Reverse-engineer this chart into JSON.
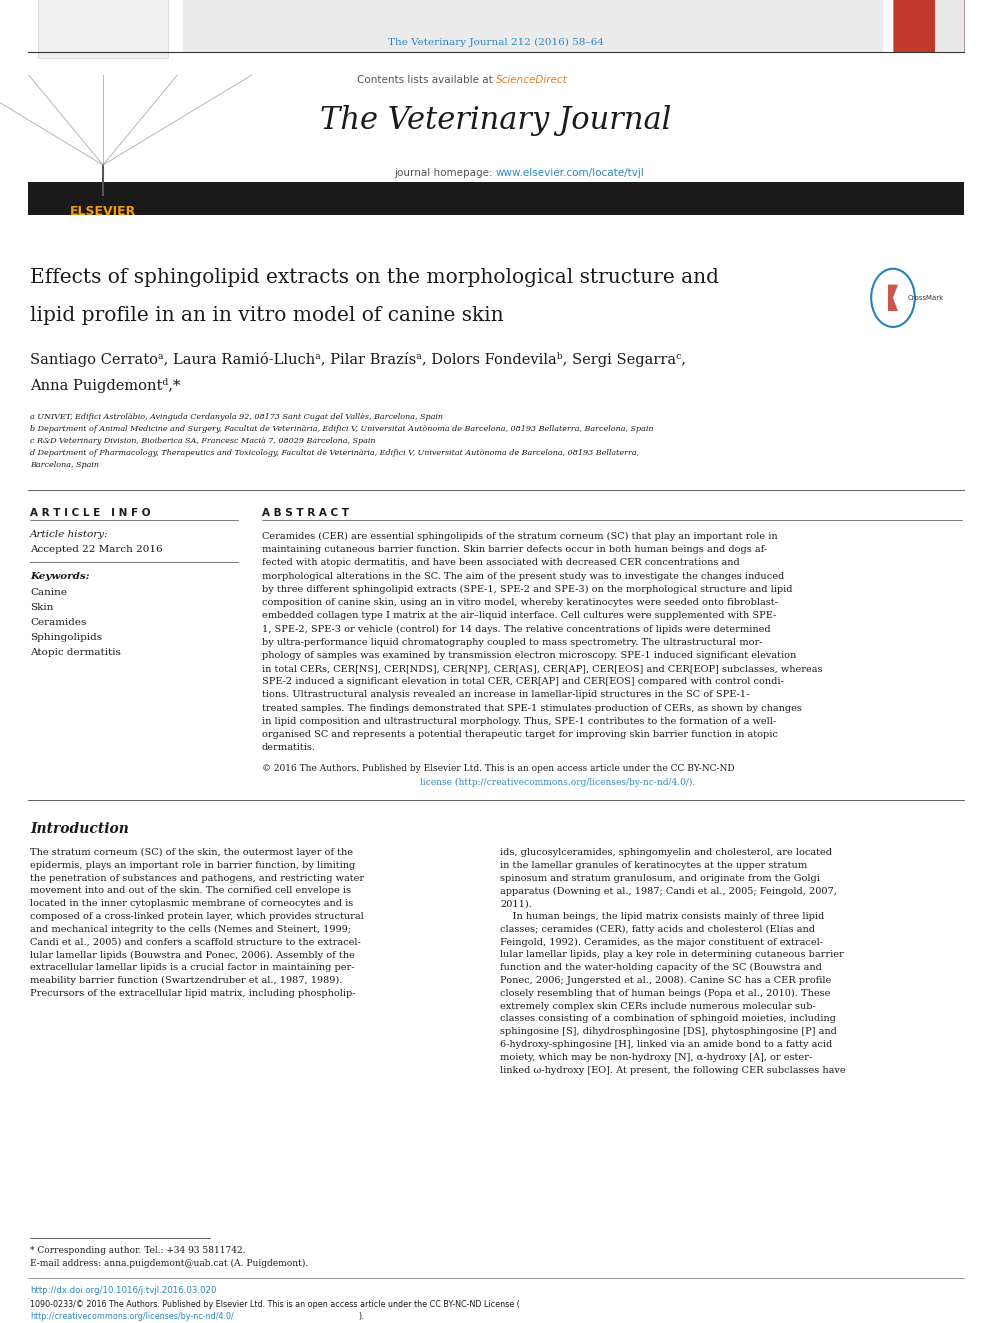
{
  "page_width": 9.92,
  "page_height": 13.23,
  "bg_color": "#ffffff",
  "journal_cite": "The Veterinary Journal 212 (2016) 58–64",
  "journal_cite_color": "#2e86c1",
  "sciencedirect_color": "#e67e22",
  "journal_title": "The Veterinary Journal",
  "journal_homepage_url": "www.elsevier.com/locate/tvjl",
  "journal_homepage_color": "#2e86c1",
  "article_info_header": "A R T I C L E   I N F O",
  "article_history_label": "Article history:",
  "accepted_text": "Accepted 22 March 2016",
  "keywords_label": "Keywords:",
  "keywords": [
    "Canine",
    "Skin",
    "Ceramides",
    "Sphingolipids",
    "Atopic dermatitis"
  ],
  "abstract_header": "A B S T R A C T",
  "affil_a": "a UNIVET, Edifici Astrolàbio, Avinguda Cerdanyola 92, 08173 Sant Cugat del Vallès, Barcelona, Spain",
  "affil_b": "b Department of Animal Medicine and Surgery, Facultat de Veterinària, Edifici V, Universitat Autònoma de Barcelona, 08193 Bellaterra, Barcelona, Spain",
  "affil_c": "c R&D Veterinary Division, Bioiberica SA, Francesc Macià 7, 08029 Barcelona, Spain",
  "affil_d": "d Department of Pharmacology, Therapeutics and Toxicology, Facultat de Veterinària, Edifici V, Universitat Autònoma de Barcelona, 08193 Bellaterra,",
  "affil_d2": "Barcelona, Spain",
  "footnote_tel": "* Corresponding author. Tel.: +34 93 5811742.",
  "footnote_email": "E-mail address: anna.puigdemont@uab.cat (A. Puigdemont).",
  "doi_text": "http://dx.doi.org/10.1016/j.tvjl.2016.03.020",
  "doi_color": "#2e86c1",
  "elsevier_orange": "#f39c12",
  "dark_bar_color": "#1a1a1a",
  "abstract_lines": [
    "Ceramides (CER) are essential sphingolipids of the stratum corneum (SC) that play an important role in",
    "maintaining cutaneous barrier function. Skin barrier defects occur in both human beings and dogs af-",
    "fected with atopic dermatitis, and have been associated with decreased CER concentrations and",
    "morphological alterations in the SC. The aim of the present study was to investigate the changes induced",
    "by three different sphingolipid extracts (SPE-1, SPE-2 and SPE-3) on the morphological structure and lipid",
    "composition of canine skin, using an in vitro model, whereby keratinocytes were seeded onto fibroblast-",
    "embedded collagen type I matrix at the air–liquid interface. Cell cultures were supplemented with SPE-",
    "1, SPE-2, SPE-3 or vehicle (control) for 14 days. The relative concentrations of lipids were determined",
    "by ultra-performance liquid chromatography coupled to mass spectrometry. The ultrastructural mor-",
    "phology of samples was examined by transmission electron microscopy. SPE-1 induced significant elevation",
    "in total CERs, CER[NS], CER[NDS], CER[NP], CER[AS], CER[AP], CER[EOS] and CER[EOP] subclasses, whereas",
    "SPE-2 induced a significant elevation in total CER, CER[AP] and CER[EOS] compared with control condi-",
    "tions. Ultrastructural analysis revealed an increase in lamellar-lipid structures in the SC of SPE-1-",
    "treated samples. The findings demonstrated that SPE-1 stimulates production of CERs, as shown by changes",
    "in lipid composition and ultrastructural morphology. Thus, SPE-1 contributes to the formation of a well-",
    "organised SC and represents a potential therapeutic target for improving skin barrier function in atopic",
    "dermatitis."
  ],
  "intro_left_lines": [
    "The stratum corneum (SC) of the skin, the outermost layer of the",
    "epidermis, plays an important role in barrier function, by limiting",
    "the penetration of substances and pathogens, and restricting water",
    "movement into and out of the skin. The cornified cell envelope is",
    "located in the inner cytoplasmic membrane of corneocytes and is",
    "composed of a cross-linked protein layer, which provides structural",
    "and mechanical integrity to the cells (Nemes and Steinert, 1999;",
    "Candi et al., 2005) and confers a scaffold structure to the extracel-",
    "lular lamellar lipids (Bouwstra and Ponec, 2006). Assembly of the",
    "extracellular lamellar lipids is a crucial factor in maintaining per-",
    "meability barrier function (Swartzendruber et al., 1987, 1989).",
    "Precursors of the extracellular lipid matrix, including phospholip-"
  ],
  "intro_right_lines": [
    "ids, glucosylceramides, sphingomyelin and cholesterol, are located",
    "in the lamellar granules of keratinocytes at the upper stratum",
    "spinosum and stratum granulosum, and originate from the Golgi",
    "apparatus (Downing et al., 1987; Candi et al., 2005; Feingold, 2007,",
    "2011).",
    "    In human beings, the lipid matrix consists mainly of three lipid",
    "classes; ceramides (CER), fatty acids and cholesterol (Elias and",
    "Feingold, 1992). Ceramides, as the major constituent of extracel-",
    "lular lamellar lipids, play a key role in determining cutaneous barrier",
    "function and the water-holding capacity of the SC (Bouwstra and",
    "Ponec, 2006; Jungersted et al., 2008). Canine SC has a CER profile",
    "closely resembling that of human beings (Popa et al., 2010). These",
    "extremely complex skin CERs include numerous molecular sub-",
    "classes consisting of a combination of sphingoid moieties, including",
    "sphingosine [S], dihydrosphingosine [DS], phytosphingosine [P] and",
    "6-hydroxy-sphingosine [H], linked via an amide bond to a fatty acid",
    "moiety, which may be non-hydroxy [N], α-hydroxy [A], or ester-",
    "linked ω-hydroxy [EO]. At present, the following CER subclasses have"
  ]
}
